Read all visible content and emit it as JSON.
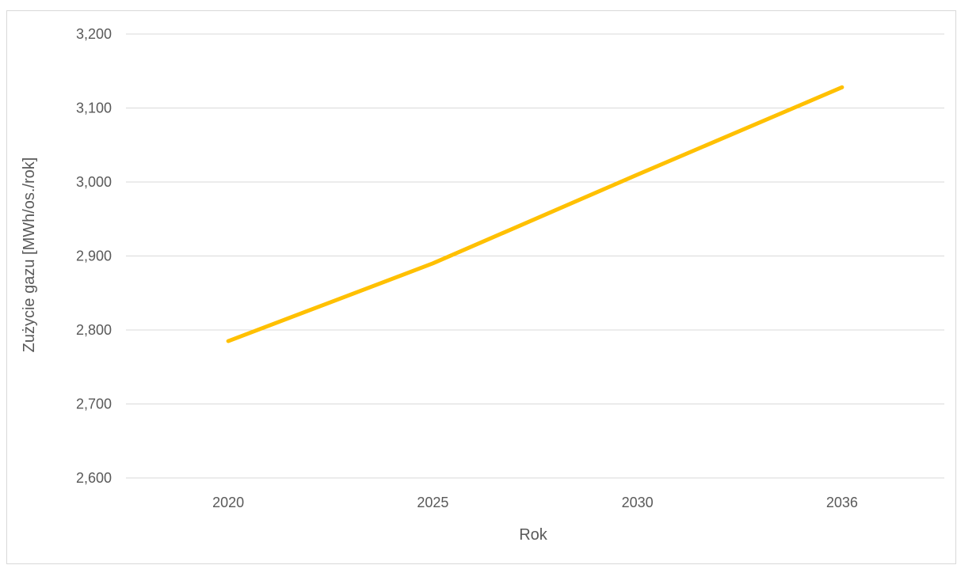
{
  "chart_data": {
    "type": "line",
    "title": "",
    "xlabel": "Rok",
    "ylabel": "Zużycie gazu [MWh/os./rok]",
    "categories": [
      "2020",
      "2025",
      "2030",
      "2036"
    ],
    "series": [
      {
        "values": [
          2.785,
          2.89,
          3.01,
          3.128
        ],
        "color": "#FFC000"
      }
    ],
    "ylim": [
      2.6,
      3.2
    ],
    "yticks": [
      {
        "value": 2.6,
        "label": "2,600"
      },
      {
        "value": 2.7,
        "label": "2,700"
      },
      {
        "value": 2.8,
        "label": "2,800"
      },
      {
        "value": 2.9,
        "label": "2,900"
      },
      {
        "value": 3.0,
        "label": "3,000"
      },
      {
        "value": 3.1,
        "label": "3,100"
      },
      {
        "value": 3.2,
        "label": "3,200"
      }
    ],
    "grid": true,
    "gridColor": "#d9d9d9",
    "legend": "none"
  }
}
